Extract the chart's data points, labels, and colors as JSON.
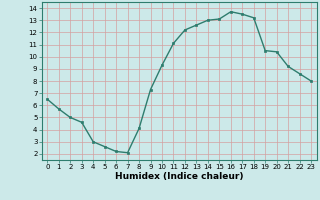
{
  "x": [
    0,
    1,
    2,
    3,
    4,
    5,
    6,
    7,
    8,
    9,
    10,
    11,
    12,
    13,
    14,
    15,
    16,
    17,
    18,
    19,
    20,
    21,
    22,
    23
  ],
  "y": [
    6.5,
    5.7,
    5.0,
    4.6,
    3.0,
    2.6,
    2.2,
    2.1,
    4.1,
    7.3,
    9.3,
    11.1,
    12.2,
    12.6,
    13.0,
    13.1,
    13.7,
    13.5,
    13.2,
    10.5,
    10.4,
    9.2,
    8.6,
    8.0
  ],
  "line_color": "#2e7d6e",
  "marker": "s",
  "marker_size": 1.5,
  "line_width": 1.0,
  "bg_color": "#cce9e9",
  "grid_color": "#d4a0a0",
  "xlabel": "Humidex (Indice chaleur)",
  "xlim": [
    -0.5,
    23.5
  ],
  "ylim": [
    1.5,
    14.5
  ],
  "yticks": [
    2,
    3,
    4,
    5,
    6,
    7,
    8,
    9,
    10,
    11,
    12,
    13,
    14
  ],
  "xticks": [
    0,
    1,
    2,
    3,
    4,
    5,
    6,
    7,
    8,
    9,
    10,
    11,
    12,
    13,
    14,
    15,
    16,
    17,
    18,
    19,
    20,
    21,
    22,
    23
  ],
  "tick_fontsize": 5.0,
  "xlabel_fontsize": 6.5
}
